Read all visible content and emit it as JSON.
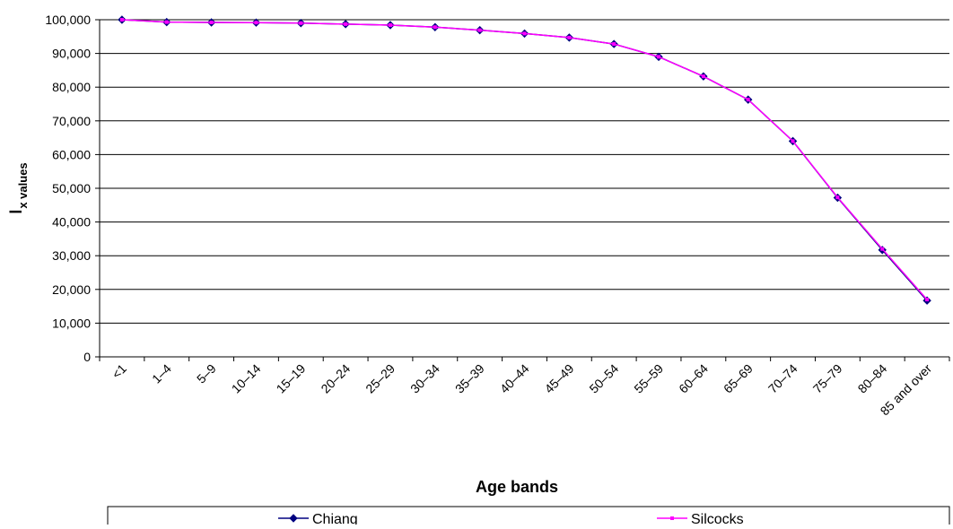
{
  "chart_data": {
    "type": "line",
    "title": "",
    "xlabel": "Age bands",
    "ylabel_main": "l",
    "ylabel_sub": "x values",
    "categories": [
      "<1",
      "1–4",
      "5–9",
      "10–14",
      "15–19",
      "20–24",
      "25–29",
      "30–34",
      "35–39",
      "40–44",
      "45–49",
      "50–54",
      "55–59",
      "60–64",
      "65–69",
      "70–74",
      "75–79",
      "80–84",
      "85 and over"
    ],
    "y_ticks": [
      0,
      10000,
      20000,
      30000,
      40000,
      50000,
      60000,
      70000,
      80000,
      90000,
      100000
    ],
    "y_tick_labels": [
      "0",
      "10,000",
      "20,000",
      "30,000",
      "40,000",
      "50,000",
      "60,000",
      "70,000",
      "80,000",
      "90,000",
      "100,000"
    ],
    "ylim": [
      0,
      100000
    ],
    "grid": true,
    "legend_position": "bottom",
    "series": [
      {
        "name": "Chiang",
        "color": "#000080",
        "marker": "diamond",
        "values": [
          100000,
          99300,
          99200,
          99150,
          99000,
          98700,
          98400,
          97800,
          96900,
          95900,
          94700,
          92800,
          89000,
          83200,
          76300,
          64000,
          47200,
          31700,
          16700
        ]
      },
      {
        "name": "Silcocks",
        "color": "#ff00ff",
        "marker": "square",
        "values": [
          100000,
          99300,
          99200,
          99150,
          99000,
          98700,
          98400,
          97800,
          96900,
          95900,
          94700,
          92800,
          89000,
          83200,
          76300,
          64000,
          47300,
          32000,
          17000
        ]
      }
    ]
  }
}
